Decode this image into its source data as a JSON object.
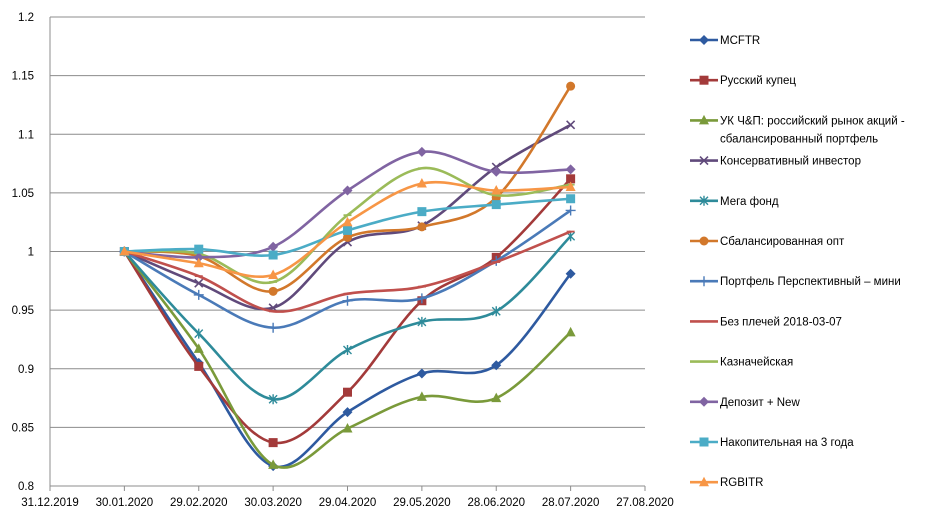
{
  "chart_data": {
    "type": "line",
    "title": "",
    "xlabel": "",
    "ylabel": "",
    "ylim": [
      0.8,
      1.2
    ],
    "y_ticks": [
      "0.8",
      "0.85",
      "0.9",
      "0.95",
      "1",
      "1.05",
      "1.1",
      "1.15",
      "1.2"
    ],
    "x_ticks": [
      "31.12.2019",
      "30.01.2020",
      "29.02.2020",
      "30.03.2020",
      "29.04.2020",
      "29.05.2020",
      "28.06.2020",
      "28.07.2020",
      "27.08.2020"
    ],
    "x_dates": [
      "30.01.2020",
      "29.02.2020",
      "30.03.2020",
      "29.04.2020",
      "29.05.2020",
      "28.06.2020",
      "28.07.2020"
    ],
    "grid": true,
    "legend_position": "right",
    "series": [
      {
        "name": "MCFTR",
        "color": "#2e5aa0",
        "marker": "diamond",
        "values": [
          1.0,
          0.905,
          0.817,
          0.863,
          0.896,
          0.903,
          0.981
        ]
      },
      {
        "name": "Русский купец",
        "color": "#a33a3a",
        "marker": "square",
        "values": [
          1.0,
          0.902,
          0.837,
          0.88,
          0.958,
          0.995,
          1.062
        ]
      },
      {
        "name": "УК Ч&П:  российский рынок акций - сбалансированный портфель",
        "color": "#7a9a3a",
        "marker": "triangle",
        "values": [
          1.0,
          0.917,
          0.818,
          0.849,
          0.876,
          0.875,
          0.931
        ]
      },
      {
        "name": "Консервативный инвестор",
        "color": "#604a7b",
        "marker": "x",
        "values": [
          1.0,
          0.973,
          0.952,
          1.008,
          1.022,
          1.072,
          1.108
        ]
      },
      {
        "name": "Мега фонд",
        "color": "#2e8b9a",
        "marker": "star",
        "values": [
          1.0,
          0.93,
          0.874,
          0.916,
          0.94,
          0.949,
          1.013
        ]
      },
      {
        "name": "Сбалансированная опт",
        "color": "#d2782b",
        "marker": "circle",
        "values": [
          1.0,
          0.996,
          0.966,
          1.012,
          1.021,
          1.046,
          1.141
        ]
      },
      {
        "name": "Портфель  Перспективный  – мини",
        "color": "#4a7ab8",
        "marker": "plus",
        "values": [
          1.0,
          0.963,
          0.935,
          0.958,
          0.96,
          0.992,
          1.035
        ]
      },
      {
        "name": "Без плечей  2018-03-07",
        "color": "#c0504d",
        "marker": "dash",
        "values": [
          1.0,
          0.979,
          0.949,
          0.964,
          0.97,
          0.991,
          1.017
        ]
      },
      {
        "name": "Казначейская",
        "color": "#9bbb59",
        "marker": "dash",
        "values": [
          1.0,
          0.998,
          0.974,
          1.031,
          1.071,
          1.048,
          1.057
        ]
      },
      {
        "name": "Депозит + New",
        "color": "#8064a2",
        "marker": "diamond",
        "values": [
          1.0,
          0.995,
          1.004,
          1.052,
          1.085,
          1.068,
          1.07
        ]
      },
      {
        "name": "Накопительная на 3 года",
        "color": "#4bacc6",
        "marker": "square",
        "values": [
          1.0,
          1.002,
          0.997,
          1.018,
          1.034,
          1.04,
          1.045
        ]
      },
      {
        "name": "RGBITR",
        "color": "#f79646",
        "marker": "triangle",
        "values": [
          1.0,
          0.99,
          0.98,
          1.025,
          1.058,
          1.052,
          1.055
        ]
      }
    ]
  }
}
